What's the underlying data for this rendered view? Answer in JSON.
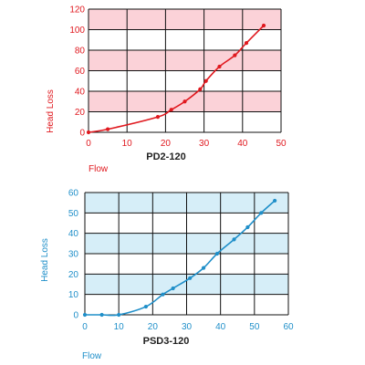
{
  "chart_data": [
    {
      "type": "line",
      "title": "PD2-120",
      "xlabel": "Flow",
      "ylabel": "Head Loss",
      "xlim": [
        0,
        50
      ],
      "ylim": [
        0,
        120
      ],
      "x_ticks": [
        "0",
        "10",
        "20",
        "30",
        "40",
        "50"
      ],
      "y_ticks": [
        "0",
        "20",
        "40",
        "60",
        "80",
        "100",
        "120"
      ],
      "grid": true,
      "color": "#e0191f",
      "band_color": "#fbd2d8",
      "series": [
        {
          "x": [
            0,
            5,
            18,
            21.5,
            25,
            29,
            30.5,
            34,
            38,
            41,
            45.5
          ],
          "y": [
            0,
            3,
            15,
            22,
            30,
            42,
            50,
            64,
            75,
            87,
            104
          ]
        }
      ]
    },
    {
      "type": "line",
      "title": "PSD3-120",
      "xlabel": "Flow",
      "ylabel": "Head Loss",
      "xlim": [
        0,
        60
      ],
      "ylim": [
        0,
        60
      ],
      "x_ticks": [
        "0",
        "10",
        "20",
        "30",
        "40",
        "50",
        "60"
      ],
      "y_ticks": [
        "0",
        "10",
        "20",
        "30",
        "40",
        "50",
        "60"
      ],
      "grid": true,
      "color": "#1f8fc9",
      "band_color": "#d6eef8",
      "series": [
        {
          "x": [
            0,
            5,
            10,
            18,
            23,
            26,
            31,
            35,
            39,
            44,
            48,
            52,
            56
          ],
          "y": [
            0,
            0,
            0,
            4,
            10,
            13,
            18,
            23,
            30,
            37,
            43,
            50,
            56
          ]
        }
      ]
    }
  ]
}
